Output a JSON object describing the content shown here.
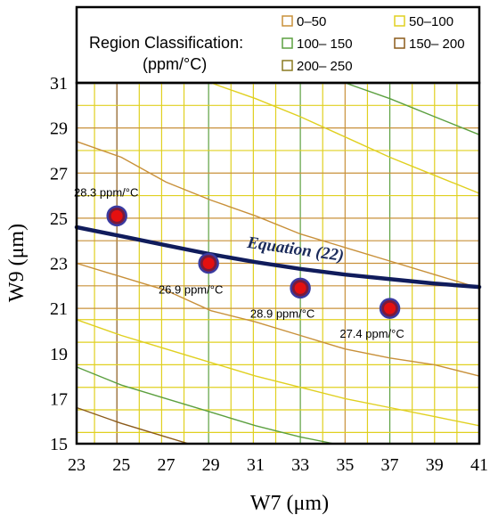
{
  "legend": {
    "title_line1": "Region Classification:",
    "title_line2": "(ppm/°C)",
    "items": [
      {
        "label": "0–50",
        "color": "#c8903a"
      },
      {
        "label": "50–100",
        "color": "#e0d020"
      },
      {
        "label": "100– 150",
        "color": "#5ca040"
      },
      {
        "label": "150– 200",
        "color": "#8b5a1a"
      },
      {
        "label": "200– 250",
        "color": "#8a7a20"
      }
    ]
  },
  "chart_data": {
    "type": "scatter",
    "xlabel": "W7 (μm)",
    "ylabel": "W9 (μm)",
    "xlim": [
      23,
      41
    ],
    "ylim": [
      15,
      31
    ],
    "xticks": [
      23,
      25,
      27,
      29,
      31,
      33,
      35,
      37,
      39,
      41
    ],
    "yticks": [
      15,
      17,
      19,
      21,
      23,
      25,
      27,
      29,
      31
    ],
    "points": [
      {
        "x": 24.8,
        "y": 25.1,
        "label": "28.3 ppm/°C"
      },
      {
        "x": 28.9,
        "y": 23.0,
        "label": "26.9 ppm/°C"
      },
      {
        "x": 33.0,
        "y": 21.9,
        "label": "28.9 ppm/°C"
      },
      {
        "x": 37.0,
        "y": 21.0,
        "label": "27.4 ppm/°C"
      }
    ],
    "equation_curve": {
      "label": "Equation (22)",
      "color": "#101c5c",
      "points": [
        [
          23,
          24.6
        ],
        [
          25,
          24.2
        ],
        [
          27,
          23.8
        ],
        [
          29,
          23.4
        ],
        [
          31,
          23.05
        ],
        [
          33,
          22.75
        ],
        [
          35,
          22.5
        ],
        [
          37,
          22.3
        ],
        [
          39,
          22.1
        ],
        [
          41,
          21.95
        ]
      ]
    },
    "gridlines": {
      "vertical": [
        {
          "x": 23.8,
          "color": "#e0d020"
        },
        {
          "x": 24.8,
          "color": "#8b5a1a"
        },
        {
          "x": 25.8,
          "color": "#e0d020"
        },
        {
          "x": 26.8,
          "color": "#e0d020"
        },
        {
          "x": 27.8,
          "color": "#e0d020"
        },
        {
          "x": 28.9,
          "color": "#5ca040"
        },
        {
          "x": 29.9,
          "color": "#e0d020"
        },
        {
          "x": 30.9,
          "color": "#e0d020"
        },
        {
          "x": 31.9,
          "color": "#e0d020"
        },
        {
          "x": 33.0,
          "color": "#5ca040"
        },
        {
          "x": 34.0,
          "color": "#e0d020"
        },
        {
          "x": 35.0,
          "color": "#c8903a"
        },
        {
          "x": 36.0,
          "color": "#e0d020"
        },
        {
          "x": 37.0,
          "color": "#5ca040"
        },
        {
          "x": 38.0,
          "color": "#e0d020"
        },
        {
          "x": 39.0,
          "color": "#e0d020"
        },
        {
          "x": 40.0,
          "color": "#e0d020"
        }
      ],
      "horizontal": [
        {
          "y": 15.5,
          "color": "#e0d020"
        },
        {
          "y": 16.5,
          "color": "#e0d020"
        },
        {
          "y": 17.5,
          "color": "#e0d020"
        },
        {
          "y": 18.5,
          "color": "#e0d020"
        },
        {
          "y": 19.5,
          "color": "#e0d020"
        },
        {
          "y": 20.5,
          "color": "#e0d020"
        },
        {
          "y": 21.0,
          "color": "#c8903a"
        },
        {
          "y": 22.0,
          "color": "#c8903a"
        },
        {
          "y": 23.0,
          "color": "#c8903a"
        },
        {
          "y": 24.0,
          "color": "#c8903a"
        },
        {
          "y": 25.0,
          "color": "#c8903a"
        },
        {
          "y": 26.0,
          "color": "#e0d020"
        },
        {
          "y": 27.0,
          "color": "#c8903a"
        },
        {
          "y": 28.0,
          "color": "#e0d020"
        },
        {
          "y": 29.0,
          "color": "#c8903a"
        },
        {
          "y": 30.0,
          "color": "#e0d020"
        }
      ]
    },
    "contours": [
      {
        "color": "#c8903a",
        "points": [
          [
            23,
            28.4
          ],
          [
            25,
            27.7
          ],
          [
            27,
            26.6
          ],
          [
            29,
            25.8
          ],
          [
            31,
            25.1
          ],
          [
            33,
            24.3
          ],
          [
            35,
            23.7
          ],
          [
            37,
            23.1
          ],
          [
            39,
            22.5
          ],
          [
            41,
            21.9
          ]
        ]
      },
      {
        "color": "#c8903a",
        "points": [
          [
            23,
            23.0
          ],
          [
            25,
            22.4
          ],
          [
            27,
            21.8
          ],
          [
            29,
            20.9
          ],
          [
            31,
            20.4
          ],
          [
            33,
            19.8
          ],
          [
            35,
            19.2
          ],
          [
            37,
            18.8
          ],
          [
            39,
            18.5
          ],
          [
            41,
            18.0
          ]
        ]
      },
      {
        "color": "#e0d020",
        "points": [
          [
            29,
            31.0
          ],
          [
            31,
            30.3
          ],
          [
            33,
            29.5
          ],
          [
            35,
            28.6
          ],
          [
            37,
            27.7
          ],
          [
            39,
            26.9
          ],
          [
            41,
            26.1
          ]
        ]
      },
      {
        "color": "#e0d020",
        "points": [
          [
            23,
            20.5
          ],
          [
            25,
            19.8
          ],
          [
            27,
            19.2
          ],
          [
            29,
            18.6
          ],
          [
            31,
            18.0
          ],
          [
            33,
            17.5
          ],
          [
            35,
            17.0
          ],
          [
            37,
            16.6
          ],
          [
            39,
            16.2
          ],
          [
            41,
            15.8
          ]
        ]
      },
      {
        "color": "#5ca040",
        "points": [
          [
            35,
            31.0
          ],
          [
            37,
            30.3
          ],
          [
            39,
            29.5
          ],
          [
            41,
            28.7
          ]
        ]
      },
      {
        "color": "#5ca040",
        "points": [
          [
            23,
            18.4
          ],
          [
            25,
            17.6
          ],
          [
            27,
            17.0
          ],
          [
            29,
            16.4
          ],
          [
            31,
            15.8
          ],
          [
            33,
            15.3
          ],
          [
            34.5,
            15.0
          ]
        ]
      },
      {
        "color": "#8b5a1a",
        "points": [
          [
            23,
            16.6
          ],
          [
            25,
            15.9
          ],
          [
            27,
            15.3
          ],
          [
            28,
            15.0
          ]
        ]
      }
    ]
  }
}
